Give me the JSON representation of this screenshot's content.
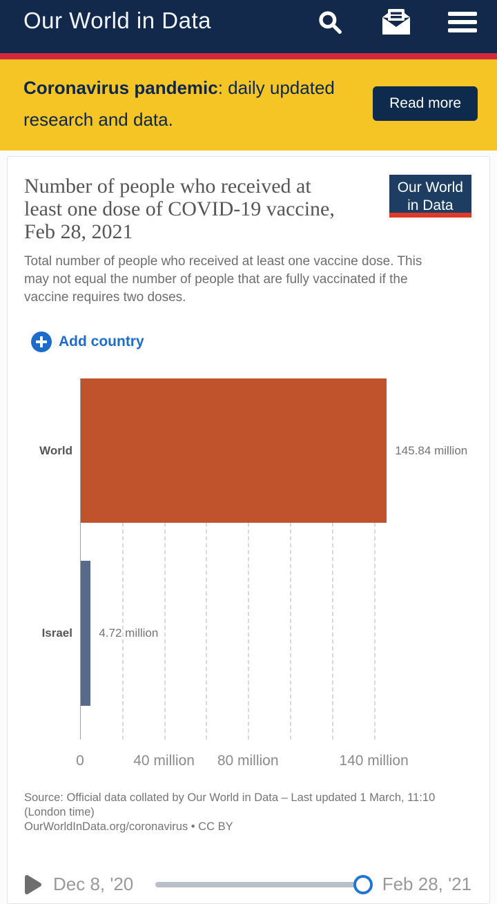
{
  "header": {
    "title": "Our World in Data",
    "icons": {
      "search": "magnifier",
      "newsletter": "envelope-letter",
      "menu": "hamburger"
    }
  },
  "banner": {
    "highlight": "Coronavirus pandemic",
    "rest": ": daily updated research and data.",
    "button_label": "Read more"
  },
  "chart": {
    "title": "Number of people who received at least one dose of COVID-19 vaccine, Feb 28, 2021",
    "subtitle": "Total number of people who received at least one vaccine dose. This may not equal the number of people that are fully vaccinated if the vaccine requires two doses.",
    "logo": {
      "line1": "Our World",
      "line2": "in Data"
    },
    "add_country_label": "Add country"
  },
  "chart_data": {
    "type": "bar",
    "orientation": "horizontal",
    "title": "Number of people who received at least one dose of COVID-19 vaccine, Feb 28, 2021",
    "date": "Feb 28, 2021",
    "unit": "million people",
    "categories": [
      "World",
      "Israel"
    ],
    "values": [
      145.84,
      4.72
    ],
    "value_labels": [
      "145.84 million",
      "4.72 million"
    ],
    "bar_colors": [
      "#C0532B",
      "#566B8A"
    ],
    "x_axis": {
      "min": 0,
      "max": 146,
      "gridlines": [
        20,
        40,
        60,
        80,
        100,
        120,
        140
      ],
      "tick_labels": [
        {
          "value": 0,
          "label": "0"
        },
        {
          "value": 40,
          "label": "40 million"
        },
        {
          "value": 80,
          "label": "80 million"
        },
        {
          "value": 140,
          "label": "140 million"
        }
      ],
      "grid": "dashed"
    },
    "legend": "none"
  },
  "footer": {
    "source_line1": "Source: Official data collated by Our World in Data – Last updated 1 March, 11:10 (London time)",
    "source_line2": "OurWorldInData.org/coronavirus • CC BY",
    "timeline": {
      "start_label": "Dec 8, '20",
      "end_label": "Feb 28, '21"
    }
  }
}
